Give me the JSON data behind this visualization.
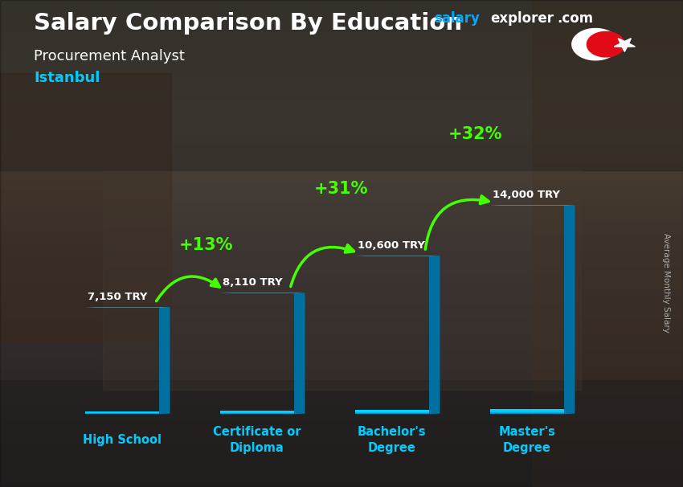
{
  "title_main": "Salary Comparison By Education",
  "title_sub": "Procurement Analyst",
  "title_city": "Istanbul",
  "ylabel": "Average Monthly Salary",
  "categories": [
    "High School",
    "Certificate or\nDiploma",
    "Bachelor's\nDegree",
    "Master's\nDegree"
  ],
  "values": [
    7150,
    8110,
    10600,
    14000
  ],
  "value_labels": [
    "7,150 TRY",
    "8,110 TRY",
    "10,600 TRY",
    "14,000 TRY"
  ],
  "pct_labels": [
    "+13%",
    "+31%",
    "+32%"
  ],
  "bar_color_face": "#00bfff",
  "bar_color_left": "#0080aa",
  "bar_color_top": "#80e8ff",
  "arrow_color": "#44ff00",
  "value_label_color": "#ffffff",
  "pct_color": "#44ff00",
  "title_color": "#ffffff",
  "sub_color": "#ffffff",
  "city_color": "#00ccff",
  "bg_top": "#6a7a8a",
  "bg_bottom": "#3a3030",
  "flag_red": "#e30a17",
  "watermark_salary": "#00aaff",
  "watermark_explorer": "#ffffff",
  "watermark_com": "#ffffff",
  "ylim": [
    0,
    17000
  ],
  "bar_width": 0.55,
  "bar_depth": 0.08
}
